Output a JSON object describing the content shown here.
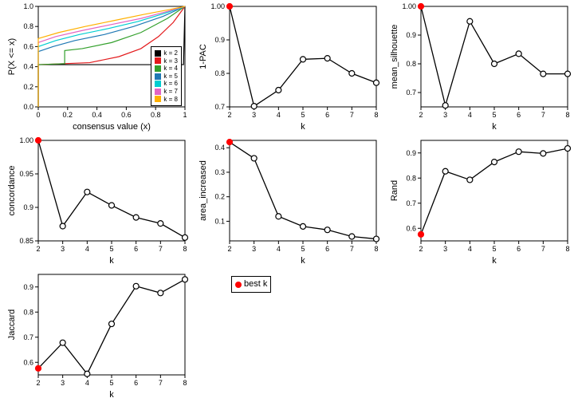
{
  "colors": {
    "axis": "#000000",
    "line": "#000000",
    "marker_fill": "#ffffff",
    "best_fill": "#ff0000",
    "bg": "#ffffff"
  },
  "ecdf_panel": {
    "xlabel": "consensus value (x)",
    "ylabel": "P(X <= x)",
    "xlim": [
      0,
      1
    ],
    "ylim": [
      0,
      1
    ],
    "xticks": [
      0.0,
      0.2,
      0.4,
      0.6,
      0.8,
      1.0
    ],
    "yticks": [
      0.0,
      0.2,
      0.4,
      0.6,
      0.8,
      1.0
    ],
    "legend": [
      {
        "label": "k = 2",
        "color": "#000000"
      },
      {
        "label": "k = 3",
        "color": "#e31a1c"
      },
      {
        "label": "k = 4",
        "color": "#33a02c"
      },
      {
        "label": "k = 5",
        "color": "#1f78b4"
      },
      {
        "label": "k = 6",
        "color": "#00ced1"
      },
      {
        "label": "k = 7",
        "color": "#e364c3"
      },
      {
        "label": "k = 8",
        "color": "#ffb000"
      }
    ],
    "curves": [
      {
        "color": "#000000",
        "pts": [
          [
            0,
            0
          ],
          [
            0,
            0.42
          ],
          [
            0.99,
            0.42
          ],
          [
            1,
            1
          ]
        ]
      },
      {
        "color": "#e31a1c",
        "pts": [
          [
            0,
            0
          ],
          [
            0,
            0.42
          ],
          [
            0.35,
            0.44
          ],
          [
            0.55,
            0.5
          ],
          [
            0.7,
            0.58
          ],
          [
            0.82,
            0.7
          ],
          [
            0.92,
            0.84
          ],
          [
            1,
            1
          ]
        ]
      },
      {
        "color": "#33a02c",
        "pts": [
          [
            0,
            0
          ],
          [
            0,
            0.42
          ],
          [
            0.18,
            0.43
          ],
          [
            0.18,
            0.56
          ],
          [
            0.3,
            0.58
          ],
          [
            0.5,
            0.64
          ],
          [
            0.7,
            0.74
          ],
          [
            0.88,
            0.88
          ],
          [
            1,
            1
          ]
        ]
      },
      {
        "color": "#1f78b4",
        "pts": [
          [
            0,
            0
          ],
          [
            0,
            0.55
          ],
          [
            0.1,
            0.6
          ],
          [
            0.25,
            0.66
          ],
          [
            0.45,
            0.72
          ],
          [
            0.65,
            0.8
          ],
          [
            0.85,
            0.9
          ],
          [
            1,
            1
          ]
        ]
      },
      {
        "color": "#00ced1",
        "pts": [
          [
            0,
            0
          ],
          [
            0,
            0.6
          ],
          [
            0.12,
            0.66
          ],
          [
            0.28,
            0.72
          ],
          [
            0.48,
            0.78
          ],
          [
            0.68,
            0.85
          ],
          [
            0.86,
            0.93
          ],
          [
            1,
            1
          ]
        ]
      },
      {
        "color": "#e364c3",
        "pts": [
          [
            0,
            0
          ],
          [
            0,
            0.64
          ],
          [
            0.12,
            0.7
          ],
          [
            0.3,
            0.76
          ],
          [
            0.5,
            0.82
          ],
          [
            0.7,
            0.88
          ],
          [
            0.88,
            0.95
          ],
          [
            1,
            1
          ]
        ]
      },
      {
        "color": "#ffb000",
        "pts": [
          [
            0,
            0
          ],
          [
            0,
            0.68
          ],
          [
            0.14,
            0.74
          ],
          [
            0.32,
            0.8
          ],
          [
            0.52,
            0.86
          ],
          [
            0.72,
            0.92
          ],
          [
            0.9,
            0.97
          ],
          [
            1,
            1
          ]
        ]
      }
    ]
  },
  "metric_panels": [
    {
      "key": "1-PAC",
      "ylabel": "1-PAC",
      "xlabel": "k",
      "x": [
        2,
        3,
        4,
        5,
        6,
        7,
        8
      ],
      "y": [
        1.0,
        0.702,
        0.75,
        0.842,
        0.845,
        0.8,
        0.772
      ],
      "ylim": [
        0.7,
        1.0
      ],
      "yticks": [
        0.7,
        0.8,
        0.9,
        1.0
      ],
      "best_index": 0
    },
    {
      "key": "mean_silhouette",
      "ylabel": "mean_silhouette",
      "xlabel": "k",
      "x": [
        2,
        3,
        4,
        5,
        6,
        7,
        8
      ],
      "y": [
        1.0,
        0.655,
        0.948,
        0.8,
        0.835,
        0.765,
        0.765
      ],
      "ylim": [
        0.65,
        1.0
      ],
      "yticks": [
        0.7,
        0.8,
        0.9,
        1.0
      ],
      "best_index": 0
    },
    {
      "key": "concordance",
      "ylabel": "concordance",
      "xlabel": "k",
      "x": [
        2,
        3,
        4,
        5,
        6,
        7,
        8
      ],
      "y": [
        1.0,
        0.872,
        0.923,
        0.903,
        0.885,
        0.876,
        0.855
      ],
      "ylim": [
        0.85,
        1.0
      ],
      "yticks": [
        0.85,
        0.9,
        0.95,
        1.0
      ],
      "best_index": 0
    },
    {
      "key": "area_increased",
      "ylabel": "area_increased",
      "xlabel": "k",
      "x": [
        2,
        3,
        4,
        5,
        6,
        7,
        8
      ],
      "y": [
        0.423,
        0.357,
        0.12,
        0.079,
        0.065,
        0.038,
        0.028
      ],
      "ylim": [
        0.02,
        0.43
      ],
      "yticks": [
        0.1,
        0.2,
        0.3,
        0.4
      ],
      "best_index": 0
    },
    {
      "key": "Rand",
      "ylabel": "Rand",
      "xlabel": "k",
      "x": [
        2,
        3,
        4,
        5,
        6,
        7,
        8
      ],
      "y": [
        0.576,
        0.827,
        0.793,
        0.864,
        0.905,
        0.898,
        0.918
      ],
      "ylim": [
        0.55,
        0.95
      ],
      "yticks": [
        0.6,
        0.7,
        0.8,
        0.9
      ],
      "best_index": 0
    },
    {
      "key": "Jaccard",
      "ylabel": "Jaccard",
      "xlabel": "k",
      "x": [
        2,
        3,
        4,
        5,
        6,
        7,
        8
      ],
      "y": [
        0.576,
        0.678,
        0.554,
        0.753,
        0.903,
        0.876,
        0.93
      ],
      "ylim": [
        0.55,
        0.95
      ],
      "yticks": [
        0.6,
        0.7,
        0.8,
        0.9
      ],
      "best_index": 0
    }
  ],
  "best_legend_label": "best k",
  "xticks_k": [
    2,
    3,
    4,
    5,
    6,
    7,
    8
  ]
}
